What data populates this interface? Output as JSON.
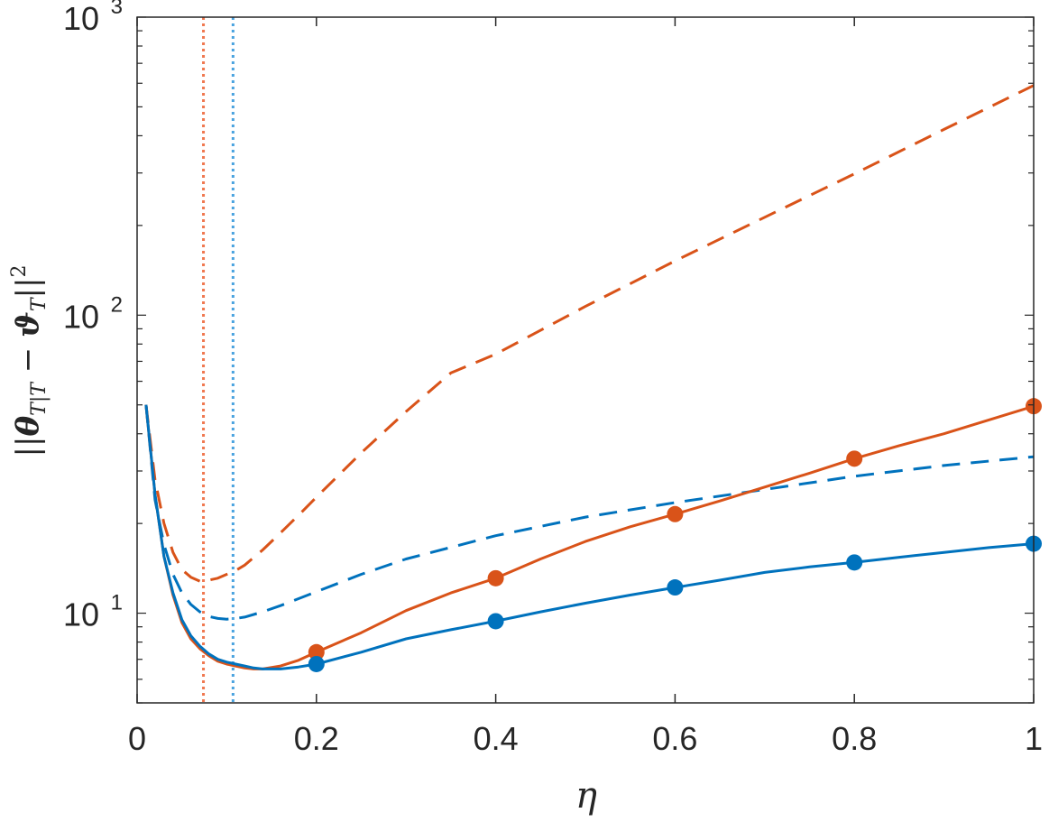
{
  "chart_data": {
    "type": "line",
    "xlabel": "η",
    "ylabel": {
      "bar_left": "||",
      "theta": "θ",
      "theta_sub": "T|T",
      "minus": " − ",
      "vartheta": "ϑ",
      "vartheta_sub": "T",
      "bar_right": "||",
      "power": "2"
    },
    "xlim": [
      0,
      1
    ],
    "ylim": [
      5,
      1000
    ],
    "yscale": "log",
    "grid": false,
    "xticks": [
      0,
      0.2,
      0.4,
      0.6,
      0.8,
      1
    ],
    "xtick_labels": [
      "0",
      "0.2",
      "0.4",
      "0.6",
      "0.8",
      "1"
    ],
    "yticks": [
      {
        "value": 10,
        "base": "10",
        "exp": "1"
      },
      {
        "value": 100,
        "base": "10",
        "exp": "2"
      },
      {
        "value": 1000,
        "base": "10",
        "exp": "3"
      }
    ],
    "vlines": [
      {
        "x": 0.074,
        "color": "#f07850"
      },
      {
        "x": 0.107,
        "color": "#4aa3df"
      }
    ],
    "series": [
      {
        "color": "#d95319",
        "style": "dashed",
        "x": [
          0.01,
          0.02,
          0.03,
          0.04,
          0.05,
          0.06,
          0.07,
          0.08,
          0.09,
          0.1,
          0.11,
          0.12,
          0.14,
          0.16,
          0.18,
          0.2,
          0.25,
          0.3,
          0.35,
          0.4,
          0.5,
          0.6,
          0.7,
          0.8,
          0.9,
          1.0
        ],
        "y": [
          50,
          28,
          20,
          16,
          14,
          13.2,
          12.8,
          12.9,
          13.1,
          13.5,
          13.9,
          14.5,
          16.3,
          18.6,
          21.3,
          24.5,
          34.5,
          47.5,
          64,
          74,
          107,
          152,
          213,
          298,
          420,
          590
        ]
      },
      {
        "color": "#0072bd",
        "style": "dashed",
        "x": [
          0.01,
          0.02,
          0.03,
          0.04,
          0.05,
          0.06,
          0.07,
          0.08,
          0.09,
          0.1,
          0.11,
          0.12,
          0.14,
          0.16,
          0.2,
          0.25,
          0.3,
          0.4,
          0.5,
          0.6,
          0.7,
          0.8,
          0.9,
          1.0
        ],
        "y": [
          50,
          24,
          17,
          13.5,
          11.7,
          10.7,
          10.1,
          9.75,
          9.6,
          9.55,
          9.6,
          9.7,
          10.1,
          10.6,
          11.8,
          13.5,
          15.2,
          18.2,
          21.0,
          23.5,
          26.0,
          28.8,
          31.3,
          33.5
        ]
      },
      {
        "color": "#d95319",
        "style": "solid",
        "x": [
          0.01,
          0.02,
          0.03,
          0.04,
          0.05,
          0.06,
          0.07,
          0.08,
          0.09,
          0.1,
          0.11,
          0.12,
          0.13,
          0.14,
          0.16,
          0.18,
          0.2,
          0.25,
          0.3,
          0.35,
          0.4,
          0.45,
          0.5,
          0.55,
          0.6,
          0.65,
          0.7,
          0.75,
          0.8,
          0.85,
          0.9,
          0.95,
          1.0
        ],
        "y": [
          50,
          25,
          15.5,
          11.5,
          9.3,
          8.2,
          7.6,
          7.2,
          6.9,
          6.75,
          6.65,
          6.55,
          6.5,
          6.5,
          6.65,
          6.95,
          7.4,
          8.6,
          10.2,
          11.7,
          13.1,
          15.2,
          17.4,
          19.5,
          21.5,
          23.8,
          26.5,
          29.5,
          33.0,
          36.5,
          40.0,
          44.5,
          49.5
        ]
      },
      {
        "color": "#0072bd",
        "style": "solid",
        "x": [
          0.01,
          0.02,
          0.03,
          0.04,
          0.05,
          0.06,
          0.07,
          0.08,
          0.09,
          0.1,
          0.11,
          0.12,
          0.13,
          0.14,
          0.16,
          0.18,
          0.2,
          0.25,
          0.3,
          0.35,
          0.4,
          0.45,
          0.5,
          0.55,
          0.6,
          0.65,
          0.7,
          0.75,
          0.8,
          0.85,
          0.9,
          0.95,
          1.0
        ],
        "y": [
          50,
          25,
          15.5,
          11.7,
          9.5,
          8.4,
          7.75,
          7.3,
          7.0,
          6.85,
          6.75,
          6.65,
          6.55,
          6.5,
          6.5,
          6.6,
          6.75,
          7.4,
          8.2,
          8.8,
          9.4,
          10.1,
          10.8,
          11.5,
          12.2,
          12.9,
          13.7,
          14.3,
          14.8,
          15.4,
          16.0,
          16.6,
          17.1
        ]
      }
    ],
    "markers": [
      {
        "color": "#d95319",
        "x": [
          0.2,
          0.4,
          0.6,
          0.8,
          1.0
        ],
        "y": [
          7.4,
          13.1,
          21.5,
          33.0,
          49.5
        ]
      },
      {
        "color": "#0072bd",
        "x": [
          0.2,
          0.4,
          0.6,
          0.8,
          1.0
        ],
        "y": [
          6.75,
          9.4,
          12.2,
          14.8,
          17.1
        ]
      }
    ]
  }
}
